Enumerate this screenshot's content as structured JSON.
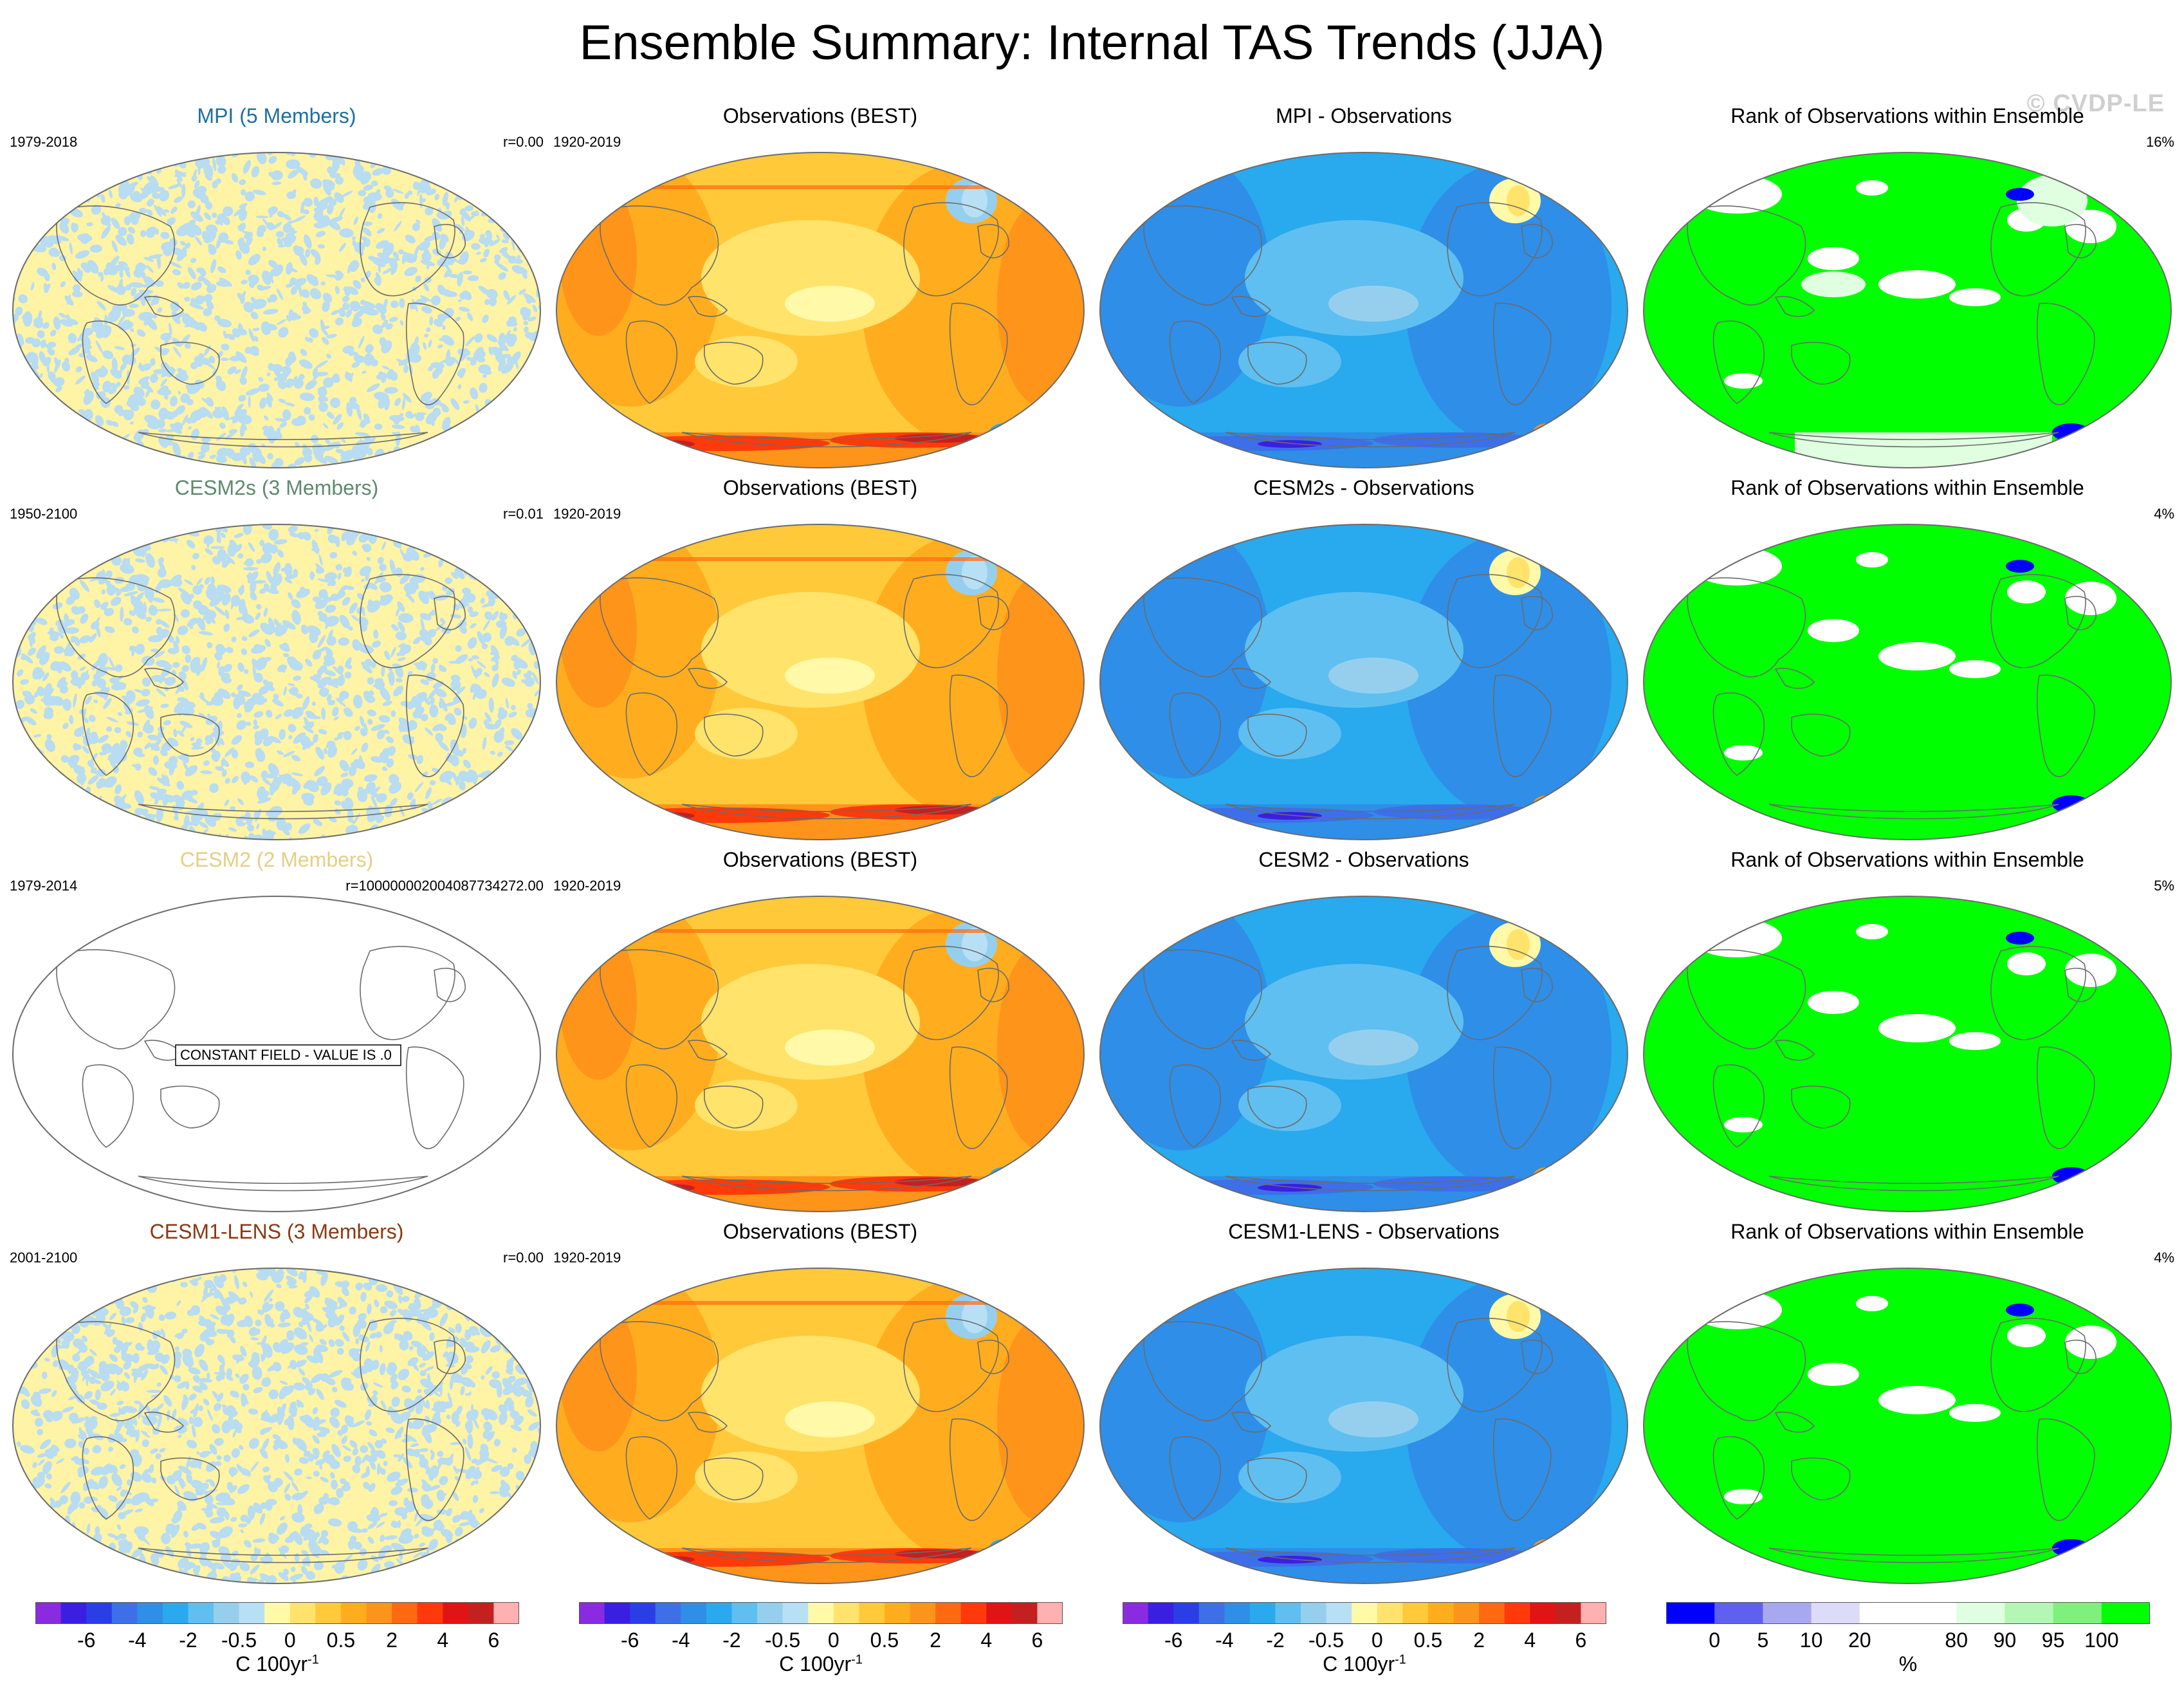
{
  "title": "Ensemble Summary: Internal TAS Trends (JJA)",
  "watermark": "© CVDP-LE",
  "rows": [
    {
      "col1": {
        "title": "MPI (5 Members)",
        "title_color": "#1f6fa0",
        "left": "1979-2018",
        "right": "r=0.00",
        "fill": "noise",
        "colors": [
          "#fff3a6",
          "#b8dcf1"
        ]
      },
      "col2": {
        "title": "Observations (BEST)",
        "left": "1920-2019",
        "right": "",
        "fill": "obs"
      },
      "col3": {
        "title": "MPI - Observations",
        "left": "",
        "right": "",
        "fill": "diff"
      },
      "col4": {
        "title": "Rank of Observations within Ensemble",
        "left": "",
        "right": "16%",
        "fill": "rank"
      }
    },
    {
      "col1": {
        "title": "CESM2s (3 Members)",
        "title_color": "#5f8a6e",
        "left": "1950-2100",
        "right": "r=0.01",
        "fill": "noise",
        "colors": [
          "#fff3a6",
          "#b8dcf1"
        ]
      },
      "col2": {
        "title": "Observations (BEST)",
        "left": "1920-2019",
        "right": "",
        "fill": "obs"
      },
      "col3": {
        "title": "CESM2s - Observations",
        "left": "",
        "right": "",
        "fill": "diff"
      },
      "col4": {
        "title": "Rank of Observations within Ensemble",
        "left": "",
        "right": "4%",
        "fill": "rank"
      }
    },
    {
      "col1": {
        "title": "CESM2 (2 Members)",
        "title_color": "#e3cf86",
        "left": "1979-2014",
        "right": "r=100000002004087734272.00",
        "fill": "blank",
        "label": "CONSTANT FIELD - VALUE IS .0"
      },
      "col2": {
        "title": "Observations (BEST)",
        "left": "1920-2019",
        "right": "",
        "fill": "obs"
      },
      "col3": {
        "title": "CESM2 - Observations",
        "left": "",
        "right": "",
        "fill": "diff"
      },
      "col4": {
        "title": "Rank of Observations within Ensemble",
        "left": "",
        "right": "5%",
        "fill": "rank"
      }
    },
    {
      "col1": {
        "title": "CESM1-LENS (3 Members)",
        "title_color": "#8a3a14",
        "left": "2001-2100",
        "right": "r=0.00",
        "fill": "noise",
        "colors": [
          "#fff3a6",
          "#b8dcf1"
        ]
      },
      "col2": {
        "title": "Observations (BEST)",
        "left": "1920-2019",
        "right": "",
        "fill": "obs"
      },
      "col3": {
        "title": "CESM1-LENS - Observations",
        "left": "",
        "right": "",
        "fill": "diff"
      },
      "col4": {
        "title": "Rank of Observations within Ensemble",
        "left": "",
        "right": "4%",
        "fill": "rank"
      }
    }
  ],
  "colorbars": [
    {
      "unit": "C 100yr",
      "unit_exp": "-1",
      "colors": [
        "#8a2be2",
        "#3a1fe0",
        "#2a3ee6",
        "#3d6fe8",
        "#2f8ee8",
        "#29a9ee",
        "#5fbff0",
        "#96cfee",
        "#b8e0f5",
        "#fff9a8",
        "#ffe36a",
        "#ffc93a",
        "#ffad1f",
        "#ff941a",
        "#ff6a10",
        "#ff3a0a",
        "#e01414",
        "#c42020",
        "#ffb0b0"
      ],
      "ticks": [
        "-6",
        "-4",
        "-2",
        "-0.5",
        "0",
        "0.5",
        "2",
        "4",
        "6"
      ]
    },
    {
      "unit": "C 100yr",
      "unit_exp": "-1",
      "colors": [
        "#8a2be2",
        "#3a1fe0",
        "#2a3ee6",
        "#3d6fe8",
        "#2f8ee8",
        "#29a9ee",
        "#5fbff0",
        "#96cfee",
        "#b8e0f5",
        "#fff9a8",
        "#ffe36a",
        "#ffc93a",
        "#ffad1f",
        "#ff941a",
        "#ff6a10",
        "#ff3a0a",
        "#e01414",
        "#c42020",
        "#ffb0b0"
      ],
      "ticks": [
        "-6",
        "-4",
        "-2",
        "-0.5",
        "0",
        "0.5",
        "2",
        "4",
        "6"
      ]
    },
    {
      "unit": "C 100yr",
      "unit_exp": "-1",
      "colors": [
        "#8a2be2",
        "#3a1fe0",
        "#2a3ee6",
        "#3d6fe8",
        "#2f8ee8",
        "#29a9ee",
        "#5fbff0",
        "#96cfee",
        "#b8e0f5",
        "#fff9a8",
        "#ffe36a",
        "#ffc93a",
        "#ffad1f",
        "#ff941a",
        "#ff6a10",
        "#ff3a0a",
        "#e01414",
        "#c42020",
        "#ffb0b0"
      ],
      "ticks": [
        "-6",
        "-4",
        "-2",
        "-0.5",
        "0",
        "0.5",
        "2",
        "4",
        "6"
      ]
    },
    {
      "unit": "%",
      "unit_exp": "",
      "colors": [
        "#0000ff",
        "#6060f0",
        "#a8a8f0",
        "#dcdcf8",
        "#ffffff",
        "#ffffff",
        "#e0ffe0",
        "#b4f7b4",
        "#7ef07e",
        "#00ff00"
      ],
      "ticks": [
        "0",
        "5",
        "10",
        "20",
        "80",
        "90",
        "95",
        "100"
      ]
    }
  ]
}
